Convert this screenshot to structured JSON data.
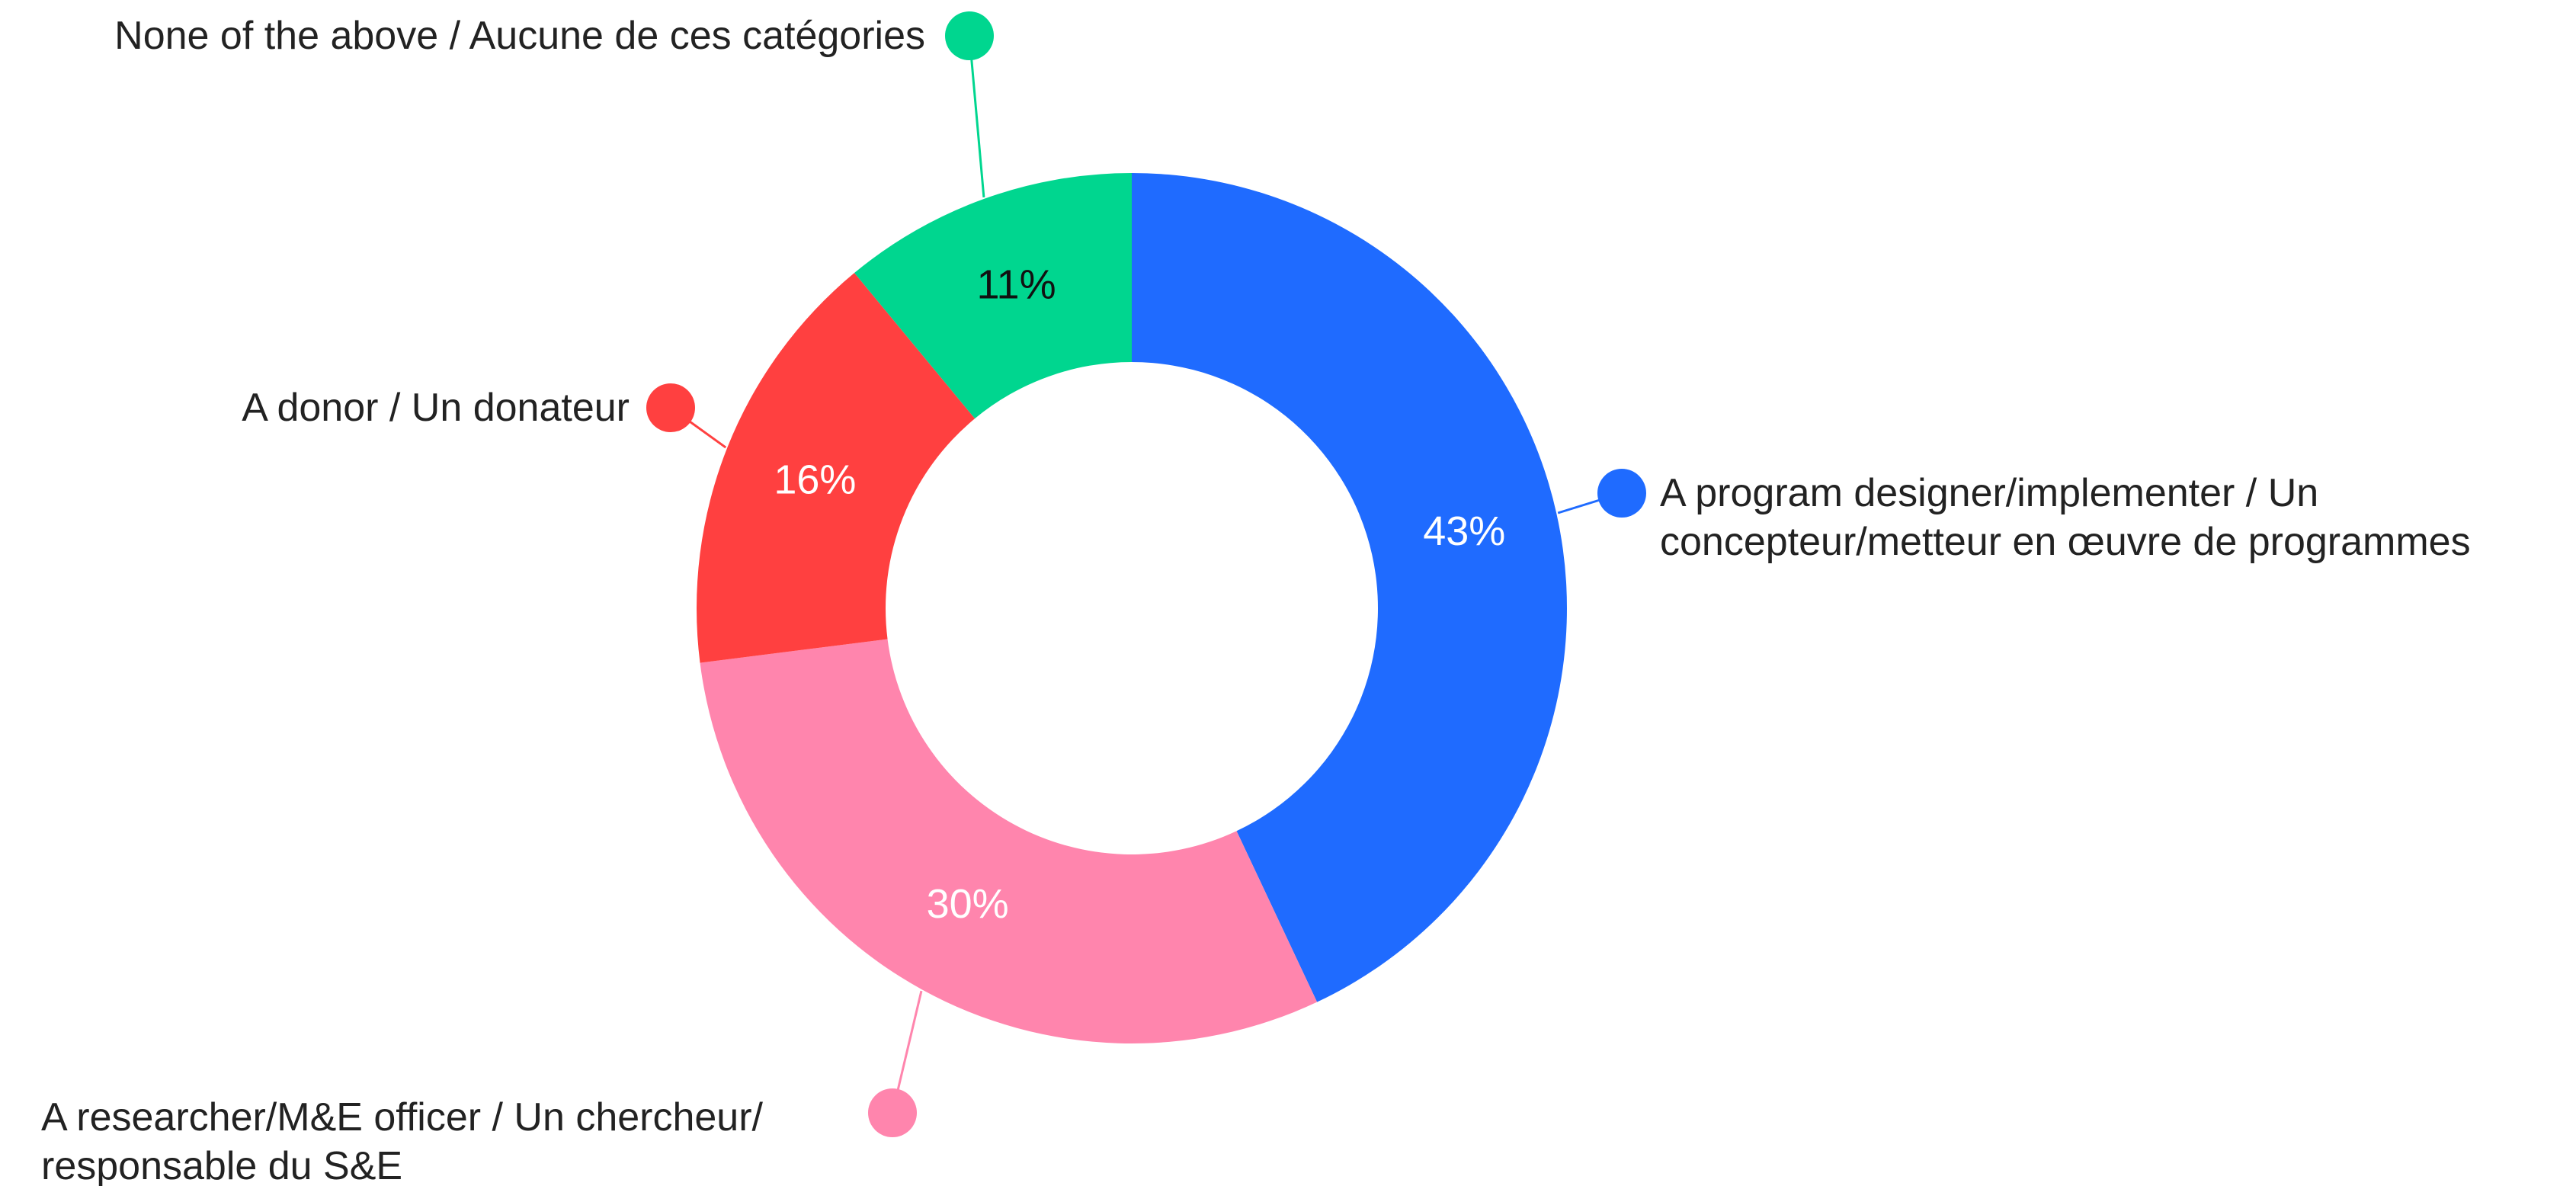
{
  "chart_data": {
    "type": "donut",
    "categories": [
      "A program designer/implementer / Un concepteur/metteur en œuvre de programmes",
      "A researcher/M&E officer / Un chercheur/ responsable du S&E",
      "A donor / Un donateur",
      "None of the above / Aucune de ces catégories"
    ],
    "values": [
      43,
      30,
      16,
      11
    ],
    "value_labels": [
      "43%",
      "30%",
      "16%",
      "11%"
    ],
    "colors": [
      "#1f6bff",
      "#ff85ad",
      "#ff4040",
      "#00d68f"
    ]
  }
}
